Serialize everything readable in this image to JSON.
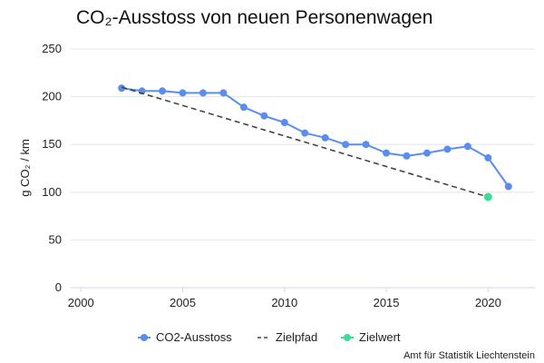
{
  "chart_data": {
    "type": "line",
    "title": "CO₂-Ausstoss von neuen Personenwagen",
    "xlabel": "",
    "ylabel": "g CO₂ / km",
    "xlim": [
      1999.5,
      2022.3
    ],
    "ylim": [
      0,
      250
    ],
    "x_ticks": [
      2000,
      2005,
      2010,
      2015,
      2020
    ],
    "y_ticks": [
      0,
      50,
      100,
      150,
      200,
      250
    ],
    "grid": "horizontal",
    "legend_position": "bottom",
    "series": [
      {
        "name": "CO2-Ausstoss",
        "color": "#5b8def",
        "style": "solid-markers",
        "x": [
          2002,
          2003,
          2004,
          2005,
          2006,
          2007,
          2008,
          2009,
          2010,
          2011,
          2012,
          2013,
          2014,
          2015,
          2016,
          2017,
          2018,
          2019,
          2020,
          2021
        ],
        "y": [
          209,
          206,
          206,
          204,
          204,
          204,
          189,
          180,
          173,
          162,
          157,
          150,
          150,
          141,
          138,
          141,
          145,
          148,
          136,
          106
        ]
      },
      {
        "name": "Zielpfad",
        "color": "#444444",
        "style": "dashed",
        "x": [
          2002,
          2020
        ],
        "y": [
          210,
          95
        ]
      },
      {
        "name": "Zielwert",
        "color": "#3ddc97",
        "style": "marker",
        "x": [
          2020
        ],
        "y": [
          95
        ]
      }
    ]
  },
  "legend": {
    "items": [
      "CO2-Ausstoss",
      "Zielpfad",
      "Zielwert"
    ]
  },
  "source": "Amt für Statistik Liechtenstein"
}
